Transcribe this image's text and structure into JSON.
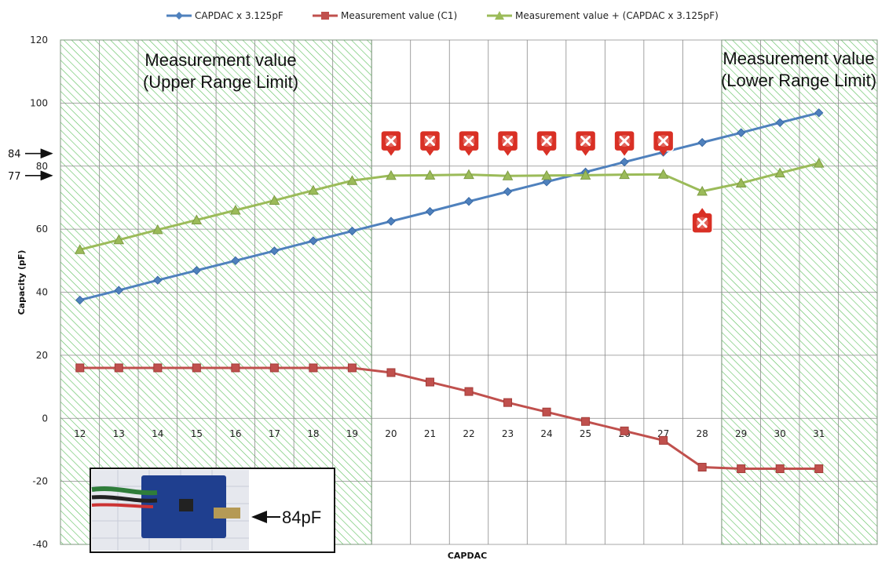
{
  "chart_data": {
    "type": "line",
    "title": "",
    "xlabel": "CAPDAC",
    "ylabel": "Capacity  (pF)",
    "ylim": [
      -40,
      120
    ],
    "yticks": [
      -40,
      -20,
      0,
      20,
      40,
      60,
      80,
      100,
      120
    ],
    "x": [
      12,
      13,
      14,
      15,
      16,
      17,
      18,
      19,
      20,
      21,
      22,
      23,
      24,
      25,
      26,
      27,
      28,
      29,
      30,
      31
    ],
    "grid": true,
    "legend_position": "top",
    "series": [
      {
        "name": "CAPDAC x 3.125pF",
        "color": "#4f81bd",
        "marker": "diamond",
        "values": [
          37.5,
          40.6,
          43.8,
          46.9,
          50.0,
          53.1,
          56.3,
          59.4,
          62.5,
          65.6,
          68.8,
          71.9,
          75.0,
          78.1,
          81.3,
          84.4,
          87.5,
          90.6,
          93.8,
          96.9
        ]
      },
      {
        "name": "Measurement value (C1)",
        "color": "#c0504d",
        "marker": "square",
        "values": [
          16,
          16,
          16,
          16,
          16,
          16,
          16,
          16,
          14.5,
          11.5,
          8.5,
          5,
          2,
          -1,
          -4,
          -7,
          -15.5,
          -16,
          -16,
          -16
        ]
      },
      {
        "name": "Measurement value + (CAPDAC x 3.125pF)",
        "color": "#9bbb59",
        "marker": "triangle",
        "values": [
          53.5,
          56.6,
          59.8,
          62.9,
          66.0,
          69.1,
          72.3,
          75.4,
          77.0,
          77.1,
          77.3,
          76.9,
          77.0,
          77.1,
          77.3,
          77.4,
          72.0,
          74.6,
          77.8,
          80.9
        ]
      }
    ],
    "annotations": {
      "upper_range_label": [
        "Measurement value",
        "(Upper Range Limit)"
      ],
      "lower_range_label": [
        "Measurement value",
        "(Lower Range Limit)"
      ],
      "hatched_ranges": [
        {
          "from_category": 12,
          "to_category": 19
        },
        {
          "from_category": 29,
          "to_category": 31
        }
      ],
      "ref_arrows": [
        {
          "label": "84",
          "value": 84
        },
        {
          "label": "77",
          "value": 77
        }
      ],
      "error_markers": {
        "above_at_value": 88,
        "above_categories": [
          20,
          21,
          22,
          23,
          24,
          25,
          26,
          27
        ],
        "below_category": 28,
        "below_value": 62
      },
      "photo_caption": "84pF"
    }
  }
}
